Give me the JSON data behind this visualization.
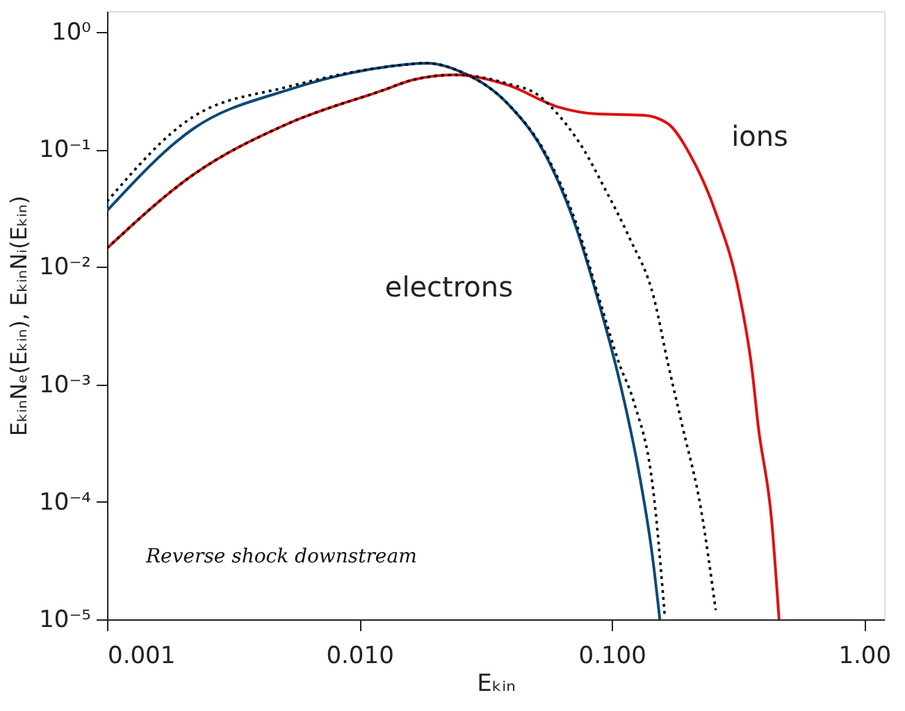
{
  "chart_data": {
    "type": "line",
    "log": "xy",
    "grid": false,
    "legend": false,
    "xlabel": "Eₖᵢₙ",
    "ylabel": "EₖᵢₙNₑ(Eₖᵢₙ),  EₖᵢₙNᵢ(Eₖᵢₙ)",
    "xlim": [
      0.001,
      1.2
    ],
    "ylim": [
      1e-05,
      1.5
    ],
    "xticks": [
      {
        "value": 0.001,
        "label": "0.001"
      },
      {
        "value": 0.01,
        "label": "0.010"
      },
      {
        "value": 0.1,
        "label": "0.100"
      },
      {
        "value": 1,
        "label": "1.00"
      }
    ],
    "yticks": [
      {
        "value": 1,
        "label": "10⁰"
      },
      {
        "value": 0.1,
        "label": "10⁻¹"
      },
      {
        "value": 0.01,
        "label": "10⁻²"
      },
      {
        "value": 0.001,
        "label": "10⁻³"
      },
      {
        "value": 0.0001,
        "label": "10⁻⁴"
      },
      {
        "value": 1e-05,
        "label": "10⁻⁵"
      }
    ],
    "annotations": [
      "Reverse shock downstream"
    ],
    "series": [
      {
        "name": "electrons",
        "color": "#0b4a7a",
        "line_style": "solid",
        "x": [
          0.001,
          0.0022,
          0.0052,
          0.0125,
          0.0186,
          0.025,
          0.039,
          0.055,
          0.072,
          0.09,
          0.105,
          0.112,
          0.128,
          0.145,
          0.155
        ],
        "values": [
          0.03,
          0.15,
          0.32,
          0.5,
          0.54,
          0.46,
          0.24,
          0.087,
          0.022,
          0.0045,
          0.0013,
          0.00072,
          0.00018,
          3.4e-05,
          1e-05
        ]
      },
      {
        "name": "ions",
        "color": "#dd1111",
        "line_style": "solid",
        "x": [
          0.001,
          0.0022,
          0.0052,
          0.0125,
          0.0163,
          0.024,
          0.039,
          0.061,
          0.087,
          0.134,
          0.167,
          0.206,
          0.258,
          0.32,
          0.36,
          0.38,
          0.43,
          0.46
        ],
        "values": [
          0.0144,
          0.061,
          0.165,
          0.32,
          0.39,
          0.43,
          0.35,
          0.23,
          0.2,
          0.195,
          0.165,
          0.087,
          0.029,
          0.0059,
          0.0013,
          0.00045,
          6.9e-05,
          1e-05
        ]
      },
      {
        "color": "#000000",
        "line_style": "dotted",
        "x": [
          0.001,
          0.0022,
          0.0052,
          0.0125,
          0.0186,
          0.025,
          0.039,
          0.055,
          0.072,
          0.09,
          0.107,
          0.122,
          0.147,
          0.162
        ],
        "values": [
          0.036,
          0.19,
          0.34,
          0.5,
          0.54,
          0.46,
          0.24,
          0.09,
          0.024,
          0.005,
          0.0015,
          0.00072,
          0.00011,
          1.1e-05
        ]
      },
      {
        "color": "#000000",
        "line_style": "dotted",
        "x": [
          0.001,
          0.0022,
          0.0052,
          0.0125,
          0.0163,
          0.024,
          0.039,
          0.051,
          0.061,
          0.076,
          0.094,
          0.117,
          0.147,
          0.167,
          0.19,
          0.226,
          0.258
        ],
        "values": [
          0.0144,
          0.061,
          0.165,
          0.32,
          0.39,
          0.43,
          0.36,
          0.29,
          0.2,
          0.106,
          0.046,
          0.018,
          0.0054,
          0.0015,
          0.00045,
          8.5e-05,
          1.2e-05
        ]
      }
    ]
  }
}
